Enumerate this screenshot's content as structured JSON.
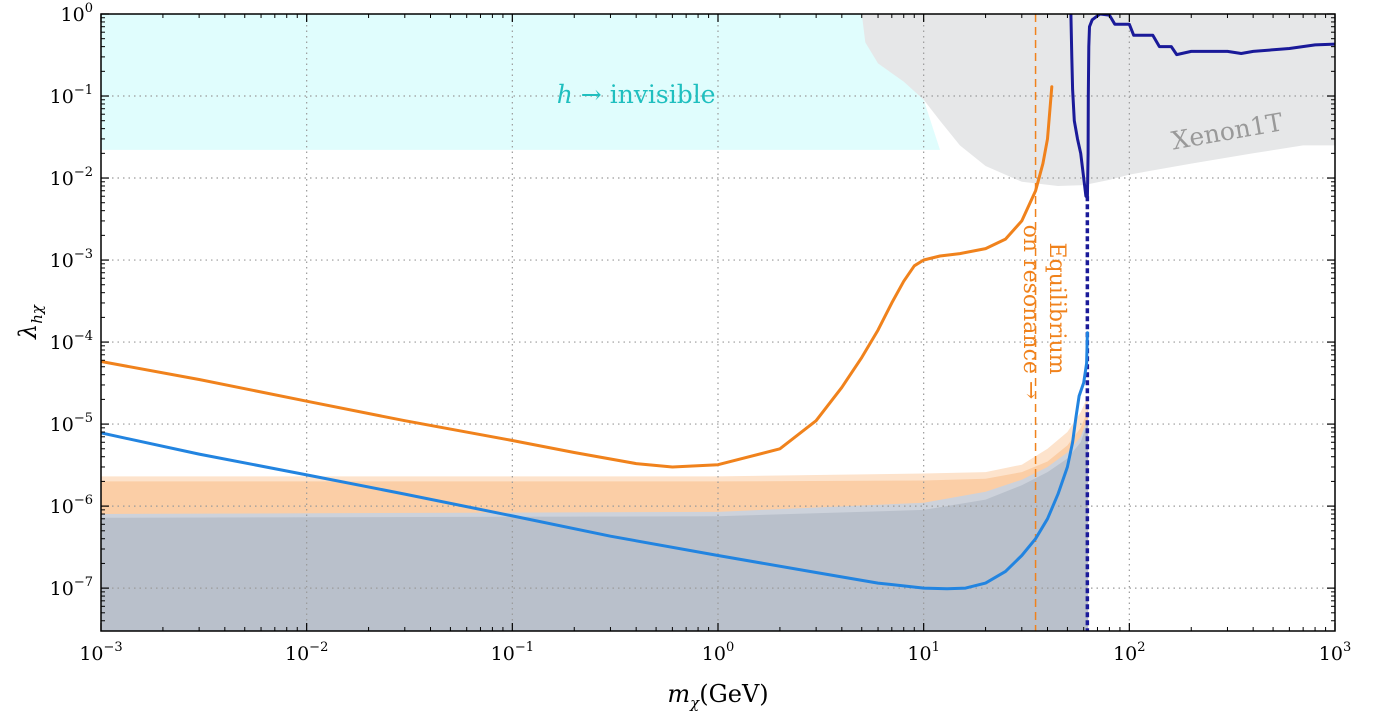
{
  "chart_data": {
    "type": "line",
    "xlabel": "m_χ(GeV)",
    "xlabel_parts": {
      "var": "m",
      "sub": "χ",
      "unit": "(GeV)"
    },
    "ylabel": "λ_hχ",
    "ylabel_parts": {
      "var": "λ",
      "sub": "hχ"
    },
    "xscale": "log",
    "yscale": "log",
    "xlim": [
      0.001,
      1000
    ],
    "ylim": [
      3e-08,
      1
    ],
    "grid": true,
    "x_ticks": [
      {
        "value": 0.001,
        "base": "10",
        "exp": "−3"
      },
      {
        "value": 0.01,
        "base": "10",
        "exp": "−2"
      },
      {
        "value": 0.1,
        "base": "10",
        "exp": "−1"
      },
      {
        "value": 1,
        "base": "10",
        "exp": "0"
      },
      {
        "value": 10,
        "base": "10",
        "exp": "1"
      },
      {
        "value": 100,
        "base": "10",
        "exp": "2"
      },
      {
        "value": 1000,
        "base": "10",
        "exp": "3"
      }
    ],
    "y_ticks": [
      {
        "value": 1,
        "base": "10",
        "exp": "0"
      },
      {
        "value": 0.1,
        "base": "10",
        "exp": "−1"
      },
      {
        "value": 0.01,
        "base": "10",
        "exp": "−2"
      },
      {
        "value": 0.001,
        "base": "10",
        "exp": "−3"
      },
      {
        "value": 0.0001,
        "base": "10",
        "exp": "−4"
      },
      {
        "value": 1e-05,
        "base": "10",
        "exp": "−5"
      },
      {
        "value": 1e-06,
        "base": "10",
        "exp": "−6"
      },
      {
        "value": 1e-07,
        "base": "10",
        "exp": "−7"
      }
    ],
    "regions": [
      {
        "key": "h-invisible",
        "label": "h → invisible",
        "label_parts": {
          "italic": "h",
          "rest": " → invisible"
        },
        "color": "#e0fdfd",
        "label_color": "#1fbfbf",
        "label_at": [
          0.4,
          0.1
        ],
        "polygon": [
          [
            0.001,
            1
          ],
          [
            5,
            1
          ],
          [
            10,
            0.09
          ],
          [
            12,
            0.022
          ],
          [
            0.001,
            0.022
          ]
        ]
      },
      {
        "key": "xenon1t",
        "label": "Xenon1T",
        "color": "#e6e7e8",
        "label_color": "#999999",
        "label_at": [
          300,
          0.035
        ],
        "label_rotation": -10,
        "polygon": [
          [
            5,
            1
          ],
          [
            5.2,
            0.45
          ],
          [
            6,
            0.25
          ],
          [
            8,
            0.15
          ],
          [
            10,
            0.09
          ],
          [
            12,
            0.05
          ],
          [
            15,
            0.025
          ],
          [
            20,
            0.014
          ],
          [
            30,
            0.009
          ],
          [
            45,
            0.008
          ],
          [
            60,
            0.0082
          ],
          [
            80,
            0.0095
          ],
          [
            100,
            0.011
          ],
          [
            200,
            0.015
          ],
          [
            400,
            0.02
          ],
          [
            700,
            0.025
          ],
          [
            1000,
            0.025
          ],
          [
            1000,
            1
          ]
        ]
      }
    ],
    "bands": [
      {
        "key": "orange-outer",
        "color": "#fde3cc",
        "lower": [
          [
            0.001,
            3e-08
          ],
          [
            1000,
            3e-08
          ]
        ],
        "upper": [
          [
            0.001,
            2.3e-06
          ],
          [
            1,
            2.3e-06
          ],
          [
            10,
            2.5e-06
          ],
          [
            20,
            2.6e-06
          ],
          [
            30,
            3.2e-06
          ],
          [
            40,
            5e-06
          ],
          [
            50,
            8e-06
          ],
          [
            58,
            1.4e-05
          ],
          [
            63,
            2.2e-05
          ]
        ]
      },
      {
        "key": "orange-inner",
        "color": "#fbcea6",
        "lower": [
          [
            0.001,
            3e-08
          ],
          [
            1000,
            3e-08
          ]
        ],
        "upper": [
          [
            0.001,
            2e-06
          ],
          [
            1,
            2e-06
          ],
          [
            10,
            2.05e-06
          ],
          [
            20,
            2.15e-06
          ],
          [
            30,
            2.6e-06
          ],
          [
            40,
            3.5e-06
          ],
          [
            50,
            5.5e-06
          ],
          [
            58,
            9e-06
          ],
          [
            63,
            1.5e-05
          ]
        ]
      },
      {
        "key": "grey-outer",
        "color": "#cdd2db",
        "lower": [
          [
            0.001,
            3e-08
          ],
          [
            1000,
            3e-08
          ]
        ],
        "upper": [
          [
            0.001,
            8e-07
          ],
          [
            1,
            8.5e-07
          ],
          [
            10,
            1.1e-06
          ],
          [
            20,
            1.5e-06
          ],
          [
            30,
            2.1e-06
          ],
          [
            40,
            3e-06
          ],
          [
            50,
            4.5e-06
          ],
          [
            58,
            7e-06
          ],
          [
            63,
            1.2e-05
          ]
        ]
      },
      {
        "key": "grey-inner",
        "color": "#b9c0cb",
        "lower": [
          [
            0.001,
            3e-08
          ],
          [
            1000,
            3e-08
          ]
        ],
        "upper": [
          [
            0.001,
            7.2e-07
          ],
          [
            1,
            7.5e-07
          ],
          [
            10,
            9e-07
          ],
          [
            20,
            1.2e-06
          ],
          [
            30,
            1.8e-06
          ],
          [
            40,
            2.6e-06
          ],
          [
            50,
            3.8e-06
          ],
          [
            58,
            6e-06
          ],
          [
            63,
            1.1e-05
          ]
        ]
      }
    ],
    "series": [
      {
        "key": "orange",
        "color": "#f0821c",
        "width": 3,
        "points": [
          [
            0.001,
            5.8e-05
          ],
          [
            0.003,
            3.5e-05
          ],
          [
            0.01,
            1.9e-05
          ],
          [
            0.03,
            1.1e-05
          ],
          [
            0.1,
            6.3e-06
          ],
          [
            0.2,
            4.5e-06
          ],
          [
            0.4,
            3.3e-06
          ],
          [
            0.6,
            3e-06
          ],
          [
            1,
            3.2e-06
          ],
          [
            2,
            5e-06
          ],
          [
            3,
            1.1e-05
          ],
          [
            4,
            2.8e-05
          ],
          [
            5,
            6.5e-05
          ],
          [
            6,
            0.00014
          ],
          [
            7,
            0.0003
          ],
          [
            8,
            0.00055
          ],
          [
            9,
            0.00085
          ],
          [
            10,
            0.001
          ],
          [
            12,
            0.00112
          ],
          [
            15,
            0.0012
          ],
          [
            20,
            0.00138
          ],
          [
            25,
            0.0018
          ],
          [
            30,
            0.003
          ],
          [
            35,
            0.007
          ],
          [
            38,
            0.015
          ],
          [
            40,
            0.03
          ],
          [
            42,
            0.13
          ]
        ]
      },
      {
        "key": "blue",
        "color": "#2284e0",
        "width": 3,
        "points": [
          [
            0.001,
            7.8e-06
          ],
          [
            0.003,
            4.3e-06
          ],
          [
            0.01,
            2.4e-06
          ],
          [
            0.03,
            1.4e-06
          ],
          [
            0.1,
            7.6e-07
          ],
          [
            0.3,
            4.3e-07
          ],
          [
            1,
            2.5e-07
          ],
          [
            3,
            1.55e-07
          ],
          [
            6,
            1.15e-07
          ],
          [
            10,
            1e-07
          ],
          [
            13,
            9.8e-08
          ],
          [
            16,
            1e-07
          ],
          [
            20,
            1.15e-07
          ],
          [
            25,
            1.6e-07
          ],
          [
            30,
            2.5e-07
          ],
          [
            35,
            4e-07
          ],
          [
            40,
            7e-07
          ],
          [
            45,
            1.4e-06
          ],
          [
            50,
            3e-06
          ],
          [
            53,
            6e-06
          ],
          [
            55,
            1.2e-05
          ],
          [
            57,
            2.2e-05
          ],
          [
            60,
            3.2e-05
          ],
          [
            62,
            5.5e-05
          ],
          [
            62.5,
            0.00013
          ]
        ]
      },
      {
        "key": "navy",
        "color": "#1a1a99",
        "width": 3,
        "points": [
          [
            52,
            1
          ],
          [
            52.5,
            0.3
          ],
          [
            53,
            0.12
          ],
          [
            54,
            0.05
          ],
          [
            56,
            0.03
          ],
          [
            58,
            0.02
          ],
          [
            60,
            0.01
          ],
          [
            61.5,
            0.006
          ],
          [
            62.5,
            0.0058
          ],
          [
            63,
            0.02
          ],
          [
            63.2,
            0.1
          ],
          [
            63.5,
            0.4
          ],
          [
            64,
            0.7
          ],
          [
            66,
            0.85
          ],
          [
            70,
            0.95
          ],
          [
            72,
            1
          ],
          [
            80,
            0.97
          ],
          [
            85,
            0.75
          ],
          [
            90,
            0.75
          ],
          [
            100,
            0.75
          ],
          [
            105,
            0.55
          ],
          [
            130,
            0.55
          ],
          [
            140,
            0.4
          ],
          [
            160,
            0.4
          ],
          [
            170,
            0.32
          ],
          [
            200,
            0.35
          ],
          [
            300,
            0.35
          ],
          [
            350,
            0.33
          ],
          [
            400,
            0.35
          ],
          [
            600,
            0.38
          ],
          [
            800,
            0.42
          ],
          [
            1000,
            0.43
          ]
        ]
      }
    ],
    "vlines": [
      {
        "key": "equilibrium",
        "x": 35,
        "color": "#f0821c",
        "dash": "8,5",
        "width": 1.5
      },
      {
        "key": "resonance",
        "x": 62.5,
        "color": "#1a1a99",
        "dash": "5,3",
        "width": 3.5,
        "y_top": 0.006
      }
    ],
    "annotations": [
      {
        "key": "equilibrium-label-line1",
        "text": "Equilibrium",
        "color": "#f0821c"
      },
      {
        "key": "equilibrium-label-line2",
        "text": "on resonance →",
        "color": "#f0821c"
      }
    ]
  }
}
